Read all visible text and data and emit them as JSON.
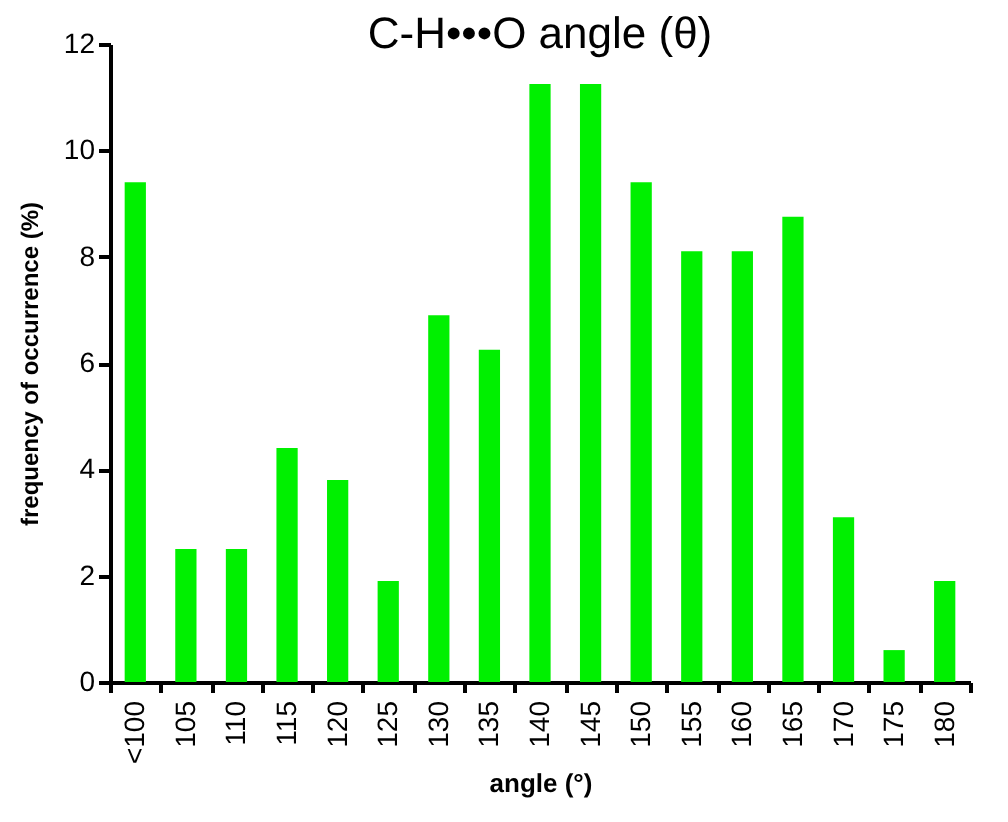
{
  "chart_data": {
    "type": "bar",
    "title": "C-H•••O angle (θ)",
    "xlabel": "angle (°)",
    "ylabel": "frequency of occurrence (%)",
    "categories": [
      "<100",
      "105",
      "110",
      "115",
      "120",
      "125",
      "130",
      "135",
      "140",
      "145",
      "150",
      "155",
      "160",
      "165",
      "170",
      "175",
      "180"
    ],
    "values": [
      9.4,
      2.5,
      2.5,
      4.4,
      3.8,
      1.9,
      6.9,
      6.25,
      11.25,
      11.25,
      9.4,
      8.1,
      8.1,
      8.75,
      3.1,
      0.6,
      1.9
    ],
    "color": "#00f000",
    "ylim": [
      0,
      12
    ],
    "yticks": [
      0,
      2,
      4,
      6,
      8,
      10,
      12
    ],
    "grid": false
  }
}
